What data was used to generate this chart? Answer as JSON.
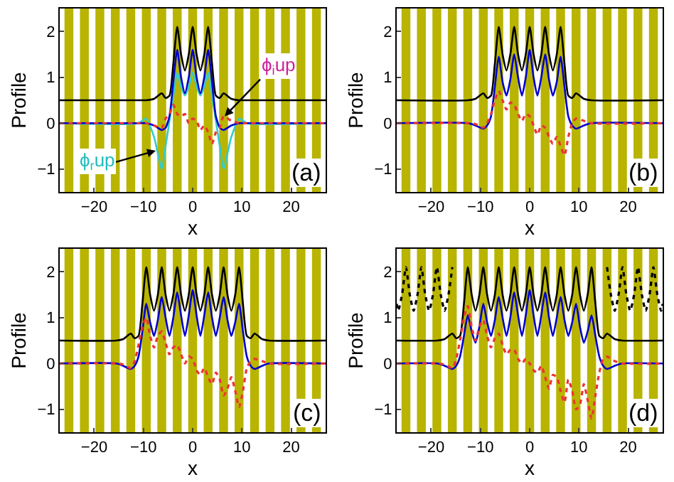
{
  "chart_data": [
    {
      "type": "line",
      "xlabel": "x",
      "ylabel": "Profile",
      "xlim": [
        -27,
        27
      ],
      "ylim": [
        -1.5,
        2.5
      ],
      "xticks": [
        -20,
        -10,
        0,
        10,
        20
      ],
      "yticks": [
        -1,
        0,
        1,
        2
      ],
      "x": [
        -27,
        -11,
        -9.5,
        -7.85,
        -6.28,
        -5.5,
        -4.71,
        -3.93,
        -3.14,
        -2.36,
        -1.57,
        -0.79,
        0,
        0.79,
        1.57,
        2.36,
        3.14,
        3.93,
        4.71,
        5.5,
        6.28,
        7.85,
        9.5,
        11,
        27
      ],
      "series": [
        {
          "color": "#000000",
          "line_style": "solid",
          "values": [
            0.5,
            0.5,
            0.5,
            0.53,
            0.65,
            0.55,
            0.6,
            1.3,
            2.1,
            1.5,
            1.15,
            1.5,
            2.1,
            1.5,
            1.15,
            1.5,
            2.1,
            1.3,
            0.6,
            0.55,
            0.65,
            0.53,
            0.5,
            0.5,
            0.5
          ]
        },
        {
          "color": "#33cccc",
          "line_style": "solid",
          "values": [
            0,
            0,
            0.1,
            -0.3,
            -1.0,
            -0.5,
            0.05,
            0.6,
            1.1,
            0.8,
            0.6,
            0.8,
            1.1,
            0.8,
            0.6,
            0.8,
            1.1,
            0.6,
            0.05,
            -0.5,
            -1.0,
            -0.3,
            0.1,
            0,
            0
          ]
        },
        {
          "color": "#0000cc",
          "line_style": "solid",
          "values": [
            0,
            0,
            0,
            -0.05,
            -0.15,
            -0.1,
            0.15,
            0.9,
            1.6,
            1.0,
            0.65,
            1.0,
            1.6,
            1.0,
            0.65,
            1.0,
            1.6,
            0.9,
            0.15,
            -0.1,
            -0.15,
            -0.05,
            0,
            0,
            0
          ]
        },
        {
          "color": "#ee3333",
          "line_style": "dotted",
          "values": [
            0,
            0,
            0,
            -0.05,
            -0.1,
            0.1,
            0.2,
            0.4,
            0.2,
            0.15,
            0.2,
            0.0,
            0.1,
            0.05,
            -0.15,
            -0.05,
            -0.2,
            -0.45,
            -0.2,
            -0.1,
            0.15,
            0.05,
            0,
            0,
            0
          ]
        }
      ],
      "annotations": [
        {
          "text": "ϕ$_{i}$up",
          "x": 6.5,
          "y": 0.15
        },
        {
          "text": "ϕ$_{r}$up",
          "x": -7.5,
          "y": -0.6
        },
        "(a)"
      ],
      "bands": [
        {
          "axis": "x",
          "from": -26.03,
          "to": -24.23,
          "color": "#b8b400"
        },
        {
          "axis": "x",
          "from": -22.89,
          "to": -21.09,
          "color": "#b8b400"
        },
        {
          "axis": "x",
          "from": -19.75,
          "to": -17.95,
          "color": "#b8b400"
        },
        {
          "axis": "x",
          "from": -16.61,
          "to": -14.81,
          "color": "#b8b400"
        },
        {
          "axis": "x",
          "from": -13.47,
          "to": -11.67,
          "color": "#b8b400"
        },
        {
          "axis": "x",
          "from": -10.32,
          "to": -8.52,
          "color": "#b8b400"
        },
        {
          "axis": "x",
          "from": -7.18,
          "to": -5.38,
          "color": "#b8b400"
        },
        {
          "axis": "x",
          "from": -4.04,
          "to": -2.24,
          "color": "#b8b400"
        },
        {
          "axis": "x",
          "from": -0.9,
          "to": 0.9,
          "color": "#b8b400"
        },
        {
          "axis": "x",
          "from": 2.24,
          "to": 4.04,
          "color": "#b8b400"
        },
        {
          "axis": "x",
          "from": 5.38,
          "to": 7.18,
          "color": "#b8b400"
        },
        {
          "axis": "x",
          "from": 8.52,
          "to": 10.32,
          "color": "#b8b400"
        },
        {
          "axis": "x",
          "from": 11.67,
          "to": 13.47,
          "color": "#b8b400"
        },
        {
          "axis": "x",
          "from": 14.81,
          "to": 16.61,
          "color": "#b8b400"
        },
        {
          "axis": "x",
          "from": 17.95,
          "to": 19.75,
          "color": "#b8b400"
        },
        {
          "axis": "x",
          "from": 21.09,
          "to": 22.89,
          "color": "#b8b400"
        },
        {
          "axis": "x",
          "from": 24.23,
          "to": 26.03,
          "color": "#b8b400"
        }
      ]
    },
    {
      "type": "line",
      "xlabel": "x",
      "ylabel": "Profile",
      "xlim": [
        -27,
        27
      ],
      "ylim": [
        -1.5,
        2.5
      ],
      "xticks": [
        -20,
        -10,
        0,
        10,
        20
      ],
      "yticks": [
        -1,
        0,
        1,
        2
      ],
      "x": [
        -27,
        -12.5,
        -11,
        -9.42,
        -8.64,
        -7.85,
        -7.07,
        -6.28,
        -5.5,
        -4.71,
        -3.93,
        -3.14,
        -2.36,
        -1.57,
        -0.79,
        0,
        0.79,
        1.57,
        2.36,
        3.14,
        3.93,
        4.71,
        5.5,
        6.28,
        7.07,
        7.85,
        8.64,
        9.42,
        11,
        12.5,
        27
      ],
      "series": [
        {
          "color": "#000000",
          "line_style": "solid",
          "values": [
            0.5,
            0.5,
            0.53,
            0.65,
            0.55,
            0.6,
            1.3,
            2.1,
            1.5,
            1.15,
            1.5,
            2.1,
            1.5,
            1.15,
            1.5,
            2.1,
            1.5,
            1.15,
            1.5,
            2.1,
            1.5,
            1.15,
            1.5,
            2.1,
            1.3,
            0.6,
            0.55,
            0.65,
            0.53,
            0.5,
            0.5
          ]
        },
        {
          "color": "#0000cc",
          "line_style": "solid",
          "values": [
            0,
            0,
            -0.05,
            -0.12,
            -0.05,
            0.15,
            0.8,
            1.45,
            0.9,
            0.6,
            0.95,
            1.5,
            1.0,
            0.6,
            1.0,
            1.6,
            1.0,
            0.6,
            1.0,
            1.5,
            0.95,
            0.6,
            0.9,
            1.45,
            0.8,
            0.15,
            -0.05,
            -0.12,
            -0.05,
            0,
            0
          ]
        },
        {
          "color": "#ee3333",
          "line_style": "dotted",
          "values": [
            0,
            0,
            -0.02,
            -0.1,
            0.0,
            0.2,
            0.5,
            0.7,
            0.5,
            0.3,
            0.45,
            0.4,
            0.2,
            0.05,
            0.2,
            0.15,
            -0.05,
            -0.25,
            -0.05,
            -0.1,
            -0.3,
            -0.45,
            -0.3,
            -0.5,
            -0.7,
            -0.3,
            0.0,
            0.1,
            0.05,
            0,
            0
          ]
        }
      ],
      "annotations": [
        "(b)"
      ],
      "bands": [
        {
          "axis": "x",
          "from": -26.03,
          "to": -24.23,
          "color": "#b8b400"
        },
        {
          "axis": "x",
          "from": -22.89,
          "to": -21.09,
          "color": "#b8b400"
        },
        {
          "axis": "x",
          "from": -19.75,
          "to": -17.95,
          "color": "#b8b400"
        },
        {
          "axis": "x",
          "from": -16.61,
          "to": -14.81,
          "color": "#b8b400"
        },
        {
          "axis": "x",
          "from": -13.47,
          "to": -11.67,
          "color": "#b8b400"
        },
        {
          "axis": "x",
          "from": -10.32,
          "to": -8.52,
          "color": "#b8b400"
        },
        {
          "axis": "x",
          "from": -7.18,
          "to": -5.38,
          "color": "#b8b400"
        },
        {
          "axis": "x",
          "from": -4.04,
          "to": -2.24,
          "color": "#b8b400"
        },
        {
          "axis": "x",
          "from": -0.9,
          "to": 0.9,
          "color": "#b8b400"
        },
        {
          "axis": "x",
          "from": 2.24,
          "to": 4.04,
          "color": "#b8b400"
        },
        {
          "axis": "x",
          "from": 5.38,
          "to": 7.18,
          "color": "#b8b400"
        },
        {
          "axis": "x",
          "from": 8.52,
          "to": 10.32,
          "color": "#b8b400"
        },
        {
          "axis": "x",
          "from": 11.67,
          "to": 13.47,
          "color": "#b8b400"
        },
        {
          "axis": "x",
          "from": 14.81,
          "to": 16.61,
          "color": "#b8b400"
        },
        {
          "axis": "x",
          "from": 17.95,
          "to": 19.75,
          "color": "#b8b400"
        },
        {
          "axis": "x",
          "from": 21.09,
          "to": 22.89,
          "color": "#b8b400"
        },
        {
          "axis": "x",
          "from": 24.23,
          "to": 26.03,
          "color": "#b8b400"
        }
      ]
    },
    {
      "type": "line",
      "xlabel": "x",
      "ylabel": "Profile",
      "xlim": [
        -27,
        27
      ],
      "ylim": [
        -1.5,
        2.5
      ],
      "xticks": [
        -20,
        -10,
        0,
        10,
        20
      ],
      "yticks": [
        -1,
        0,
        1,
        2
      ],
      "x": [
        -27,
        -15.5,
        -14.14,
        -12.57,
        -11.78,
        -11,
        -10.21,
        -9.42,
        -8.64,
        -7.85,
        -7.07,
        -6.28,
        -5.5,
        -4.71,
        -3.93,
        -3.14,
        -2.36,
        -1.57,
        -0.79,
        0,
        0.79,
        1.57,
        2.36,
        3.14,
        3.93,
        4.71,
        5.5,
        6.28,
        7.07,
        7.85,
        8.64,
        9.42,
        10.21,
        11,
        11.78,
        12.57,
        14.14,
        15.5,
        27
      ],
      "series": [
        {
          "color": "#000000",
          "line_style": "solid",
          "values": [
            0.5,
            0.5,
            0.53,
            0.65,
            0.55,
            0.6,
            1.3,
            2.1,
            1.5,
            1.15,
            1.5,
            2.1,
            1.5,
            1.15,
            1.5,
            2.1,
            1.5,
            1.15,
            1.5,
            2.1,
            1.5,
            1.15,
            1.5,
            2.1,
            1.5,
            1.15,
            1.5,
            2.1,
            1.5,
            1.15,
            1.5,
            2.1,
            1.3,
            0.6,
            0.55,
            0.65,
            0.53,
            0.5,
            0.5
          ]
        },
        {
          "color": "#0000cc",
          "line_style": "solid",
          "values": [
            0,
            0,
            -0.05,
            -0.12,
            -0.05,
            0.15,
            0.7,
            1.3,
            0.9,
            0.6,
            0.95,
            1.45,
            1.0,
            0.6,
            1.0,
            1.55,
            1.05,
            0.6,
            1.05,
            1.6,
            1.05,
            0.6,
            1.05,
            1.55,
            1.0,
            0.6,
            1.0,
            1.45,
            0.95,
            0.6,
            0.9,
            1.3,
            0.7,
            0.15,
            -0.05,
            -0.12,
            -0.05,
            0,
            0
          ]
        },
        {
          "color": "#ee3333",
          "line_style": "dotted",
          "values": [
            0,
            0,
            -0.02,
            -0.1,
            0.05,
            0.4,
            0.8,
            1.0,
            0.6,
            0.35,
            0.6,
            0.7,
            0.45,
            0.2,
            0.35,
            0.4,
            0.2,
            0.0,
            0.15,
            0.1,
            -0.15,
            -0.25,
            -0.1,
            -0.3,
            -0.45,
            -0.2,
            -0.35,
            -0.7,
            -0.55,
            -0.3,
            -0.6,
            -0.95,
            -0.6,
            -0.1,
            0.05,
            0.1,
            0.05,
            0,
            0
          ]
        }
      ],
      "annotations": [
        "(c)"
      ],
      "bands": [
        {
          "axis": "x",
          "from": -26.03,
          "to": -24.23,
          "color": "#b8b400"
        },
        {
          "axis": "x",
          "from": -22.89,
          "to": -21.09,
          "color": "#b8b400"
        },
        {
          "axis": "x",
          "from": -19.75,
          "to": -17.95,
          "color": "#b8b400"
        },
        {
          "axis": "x",
          "from": -16.61,
          "to": -14.81,
          "color": "#b8b400"
        },
        {
          "axis": "x",
          "from": -13.47,
          "to": -11.67,
          "color": "#b8b400"
        },
        {
          "axis": "x",
          "from": -10.32,
          "to": -8.52,
          "color": "#b8b400"
        },
        {
          "axis": "x",
          "from": -7.18,
          "to": -5.38,
          "color": "#b8b400"
        },
        {
          "axis": "x",
          "from": -4.04,
          "to": -2.24,
          "color": "#b8b400"
        },
        {
          "axis": "x",
          "from": -0.9,
          "to": 0.9,
          "color": "#b8b400"
        },
        {
          "axis": "x",
          "from": 2.24,
          "to": 4.04,
          "color": "#b8b400"
        },
        {
          "axis": "x",
          "from": 5.38,
          "to": 7.18,
          "color": "#b8b400"
        },
        {
          "axis": "x",
          "from": 8.52,
          "to": 10.32,
          "color": "#b8b400"
        },
        {
          "axis": "x",
          "from": 11.67,
          "to": 13.47,
          "color": "#b8b400"
        },
        {
          "axis": "x",
          "from": 14.81,
          "to": 16.61,
          "color": "#b8b400"
        },
        {
          "axis": "x",
          "from": 17.95,
          "to": 19.75,
          "color": "#b8b400"
        },
        {
          "axis": "x",
          "from": 21.09,
          "to": 22.89,
          "color": "#b8b400"
        },
        {
          "axis": "x",
          "from": 24.23,
          "to": 26.03,
          "color": "#b8b400"
        }
      ]
    },
    {
      "type": "line",
      "xlabel": "x",
      "ylabel": "Profile",
      "xlim": [
        -27,
        27
      ],
      "ylim": [
        -1.5,
        2.5
      ],
      "xticks": [
        -20,
        -10,
        0,
        10,
        20
      ],
      "yticks": [
        -1,
        0,
        1,
        2
      ],
      "x": [
        -27,
        -18.8,
        -17.28,
        -15.71,
        -14.92,
        -14.14,
        -13.35,
        -12.57,
        -11.78,
        -11,
        -10.21,
        -9.42,
        -8.64,
        -7.85,
        -7.07,
        -6.28,
        -5.5,
        -4.71,
        -3.93,
        -3.14,
        -2.36,
        -1.57,
        -0.79,
        0,
        0.79,
        1.57,
        2.36,
        3.14,
        3.93,
        4.71,
        5.5,
        6.28,
        7.07,
        7.85,
        8.64,
        9.42,
        10.21,
        11,
        11.78,
        12.57,
        13.35,
        14.14,
        14.92,
        15.71,
        17.28,
        18.8,
        27
      ],
      "series": [
        {
          "color": "#000000",
          "line_style": "dotted",
          "x": [
            -27,
            -26.7,
            -25.92,
            -25.13,
            -24.35,
            -23.56,
            -22.78,
            -21.99,
            -21.21,
            -20.42,
            -19.64,
            -18.85,
            -18.06,
            -17.28,
            -16.49,
            -15.71,
            0,
            15.71,
            16.49,
            17.28,
            18.06,
            18.85,
            19.64,
            20.42,
            21.21,
            21.99,
            22.78,
            23.56,
            24.35,
            25.13,
            25.92,
            26.7,
            27
          ],
          "values": [
            1.3,
            1.15,
            1.5,
            2.1,
            1.5,
            1.15,
            1.5,
            2.1,
            1.5,
            1.15,
            1.5,
            2.1,
            1.5,
            1.15,
            1.5,
            2.1,
            null,
            2.1,
            1.5,
            1.15,
            1.5,
            2.1,
            1.5,
            1.15,
            1.5,
            2.1,
            1.5,
            1.15,
            1.5,
            2.1,
            1.5,
            1.15,
            1.3
          ]
        },
        {
          "color": "#000000",
          "line_style": "solid",
          "values": [
            0.5,
            0.5,
            0.53,
            0.65,
            0.55,
            0.6,
            1.3,
            2.1,
            1.5,
            1.15,
            1.5,
            2.1,
            1.5,
            1.15,
            1.5,
            2.1,
            1.5,
            1.15,
            1.5,
            2.1,
            1.5,
            1.15,
            1.5,
            2.1,
            1.5,
            1.15,
            1.5,
            2.1,
            1.5,
            1.15,
            1.5,
            2.1,
            1.5,
            1.15,
            1.5,
            2.1,
            1.5,
            1.15,
            1.5,
            2.1,
            1.3,
            0.6,
            0.55,
            0.65,
            0.53,
            0.5,
            0.5
          ]
        },
        {
          "color": "#0000cc",
          "line_style": "solid",
          "values": [
            0,
            0,
            -0.05,
            -0.12,
            -0.05,
            0.15,
            0.6,
            1.05,
            0.7,
            0.45,
            0.8,
            1.3,
            0.9,
            0.6,
            0.95,
            1.45,
            1.0,
            0.6,
            1.0,
            1.55,
            1.05,
            0.6,
            1.05,
            1.6,
            1.05,
            0.6,
            1.05,
            1.55,
            1.0,
            0.6,
            1.0,
            1.45,
            0.95,
            0.6,
            0.9,
            1.3,
            0.8,
            0.45,
            0.7,
            1.05,
            0.6,
            0.15,
            -0.05,
            -0.12,
            -0.05,
            0,
            0
          ]
        },
        {
          "color": "#ee3333",
          "line_style": "dotted",
          "values": [
            0,
            0,
            -0.02,
            -0.1,
            0.1,
            0.5,
            1.0,
            1.25,
            0.8,
            0.5,
            0.8,
            0.95,
            0.6,
            0.35,
            0.55,
            0.65,
            0.4,
            0.2,
            0.3,
            0.3,
            0.1,
            0.0,
            0.1,
            0.0,
            -0.15,
            -0.2,
            -0.05,
            -0.3,
            -0.55,
            -0.25,
            -0.3,
            -0.6,
            -0.85,
            -0.35,
            -0.6,
            -1.0,
            -0.9,
            -0.45,
            -0.8,
            -1.2,
            -0.7,
            -0.2,
            0.1,
            0.15,
            0.05,
            0,
            0
          ]
        }
      ],
      "annotations": [
        "(d)"
      ],
      "bands": [
        {
          "axis": "x",
          "from": -26.03,
          "to": -24.23,
          "color": "#b8b400"
        },
        {
          "axis": "x",
          "from": -22.89,
          "to": -21.09,
          "color": "#b8b400"
        },
        {
          "axis": "x",
          "from": -19.75,
          "to": -17.95,
          "color": "#b8b400"
        },
        {
          "axis": "x",
          "from": -16.61,
          "to": -14.81,
          "color": "#b8b400"
        },
        {
          "axis": "x",
          "from": -13.47,
          "to": -11.67,
          "color": "#b8b400"
        },
        {
          "axis": "x",
          "from": -10.32,
          "to": -8.52,
          "color": "#b8b400"
        },
        {
          "axis": "x",
          "from": -7.18,
          "to": -5.38,
          "color": "#b8b400"
        },
        {
          "axis": "x",
          "from": -4.04,
          "to": -2.24,
          "color": "#b8b400"
        },
        {
          "axis": "x",
          "from": -0.9,
          "to": 0.9,
          "color": "#b8b400"
        },
        {
          "axis": "x",
          "from": 2.24,
          "to": 4.04,
          "color": "#b8b400"
        },
        {
          "axis": "x",
          "from": 5.38,
          "to": 7.18,
          "color": "#b8b400"
        },
        {
          "axis": "x",
          "from": 8.52,
          "to": 10.32,
          "color": "#b8b400"
        },
        {
          "axis": "x",
          "from": 11.67,
          "to": 13.47,
          "color": "#b8b400"
        },
        {
          "axis": "x",
          "from": 14.81,
          "to": 16.61,
          "color": "#b8b400"
        },
        {
          "axis": "x",
          "from": 17.95,
          "to": 19.75,
          "color": "#b8b400"
        },
        {
          "axis": "x",
          "from": 21.09,
          "to": 22.89,
          "color": "#b8b400"
        },
        {
          "axis": "x",
          "from": 24.23,
          "to": 26.03,
          "color": "#b8b400"
        }
      ]
    }
  ]
}
